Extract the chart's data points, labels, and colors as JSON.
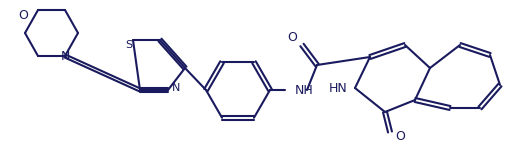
{
  "bg_color": "#ffffff",
  "line_color": "#1a1a5e",
  "line_width": 1.5,
  "figsize": [
    5.29,
    1.53
  ],
  "dpi": 100,
  "xlim": [
    0,
    529
  ],
  "ylim": [
    0,
    153
  ]
}
